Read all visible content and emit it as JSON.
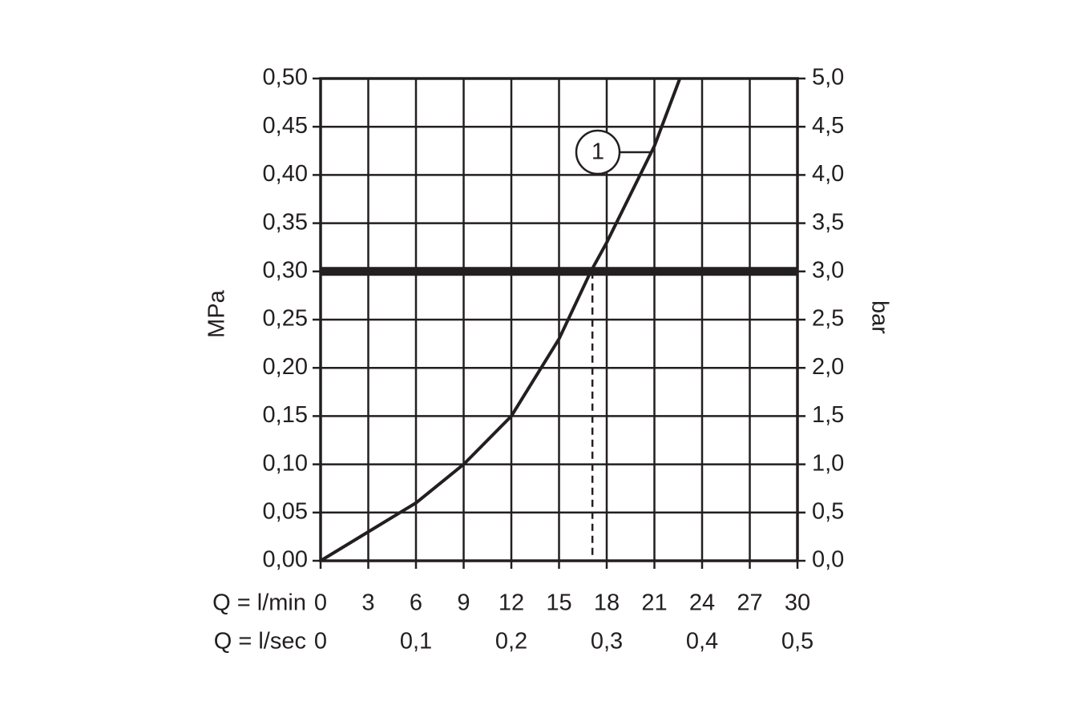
{
  "chart_data": {
    "type": "line",
    "x": [
      0,
      3,
      6,
      9,
      12,
      15,
      17,
      18,
      21,
      22.6
    ],
    "values": [
      0,
      0.03,
      0.06,
      0.1,
      0.15,
      0.23,
      0.3,
      0.33,
      0.43,
      0.5
    ],
    "color": "#231f20",
    "xlabel": "Q = l/min",
    "xlim": [
      0,
      30
    ],
    "xticks": [
      0,
      3,
      6,
      9,
      12,
      15,
      18,
      21,
      24,
      27,
      30
    ],
    "x2label": "Q = l/sec",
    "x2lim": [
      0,
      0.5
    ],
    "x2ticks": [
      0,
      {
        "value": 0.1,
        "label": "0,1"
      },
      {
        "value": 0.2,
        "label": "0,2"
      },
      {
        "value": 0.3,
        "label": "0,3"
      },
      {
        "value": 0.4,
        "label": "0,4"
      },
      {
        "value": 0.5,
        "label": "0,5"
      }
    ],
    "ylabel": "MPa",
    "ylim": [
      0,
      0.5
    ],
    "yticks": [
      {
        "value": 0,
        "label": "0,00"
      },
      {
        "value": 0.05,
        "label": "0,05"
      },
      {
        "value": 0.1,
        "label": "0,10"
      },
      {
        "value": 0.15,
        "label": "0,15"
      },
      {
        "value": 0.2,
        "label": "0,20"
      },
      {
        "value": 0.25,
        "label": "0,25"
      },
      {
        "value": 0.3,
        "label": "0,30"
      },
      {
        "value": 0.35,
        "label": "0,35"
      },
      {
        "value": 0.4,
        "label": "0,40"
      },
      {
        "value": 0.45,
        "label": "0,45"
      },
      {
        "value": 0.5,
        "label": "0,50"
      }
    ],
    "y2label": "bar",
    "y2lim": [
      0,
      5
    ],
    "y2ticks": [
      {
        "value": 0,
        "label": "0,0"
      },
      {
        "value": 0.5,
        "label": "0,5"
      },
      {
        "value": 1,
        "label": "1,0"
      },
      {
        "value": 1.5,
        "label": "1,5"
      },
      {
        "value": 2,
        "label": "2,0"
      },
      {
        "value": 2.5,
        "label": "2,5"
      },
      {
        "value": 3,
        "label": "3,0"
      },
      {
        "value": 3.5,
        "label": "3,5"
      },
      {
        "value": 4,
        "label": "4,0"
      },
      {
        "value": 4.5,
        "label": "4,5"
      },
      {
        "value": 5,
        "label": "5,0"
      }
    ],
    "reference_y": 0.3,
    "marker_x": 17.1,
    "annotations": [
      {
        "text": "1"
      }
    ],
    "grid": true
  }
}
